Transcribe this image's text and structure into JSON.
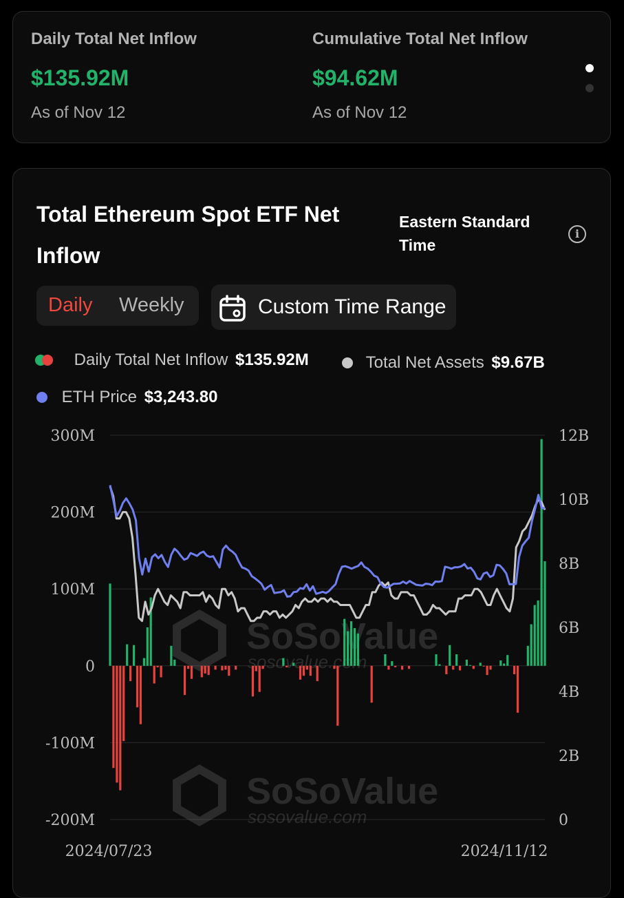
{
  "stats": {
    "daily": {
      "label": "Daily Total Net Inflow",
      "value": "$135.92M",
      "date": "As of Nov 12"
    },
    "cumulative": {
      "label": "Cumulative Total Net Inflow",
      "value": "$94.62M",
      "date": "As of Nov 12"
    }
  },
  "chart_card": {
    "title": "Total Ethereum Spot ETF Net Inflow",
    "timezone": "Eastern Standard Time",
    "tabs": {
      "daily": "Daily",
      "weekly": "Weekly"
    },
    "range_button": "Custom Time Range"
  },
  "legend": {
    "inflow_label": "Daily Total Net Inflow",
    "inflow_value": "$135.92M",
    "assets_label": "Total Net Assets",
    "assets_value": "$9.67B",
    "price_label": "ETH Price",
    "price_value": "$3,243.80"
  },
  "watermark": {
    "brand": "SoSoValue",
    "url": "sosovalue.com"
  },
  "colors": {
    "positive": "#22b36b",
    "negative": "#e8423f",
    "price": "#6f7ff0",
    "assets": "#c8c8c8",
    "grid": "#2a2a2a"
  },
  "chart_data": {
    "type": "bar",
    "left_axis": {
      "ticks": [
        "300M",
        "200M",
        "100M",
        "0",
        "-100M",
        "-200M"
      ],
      "range": [
        -200,
        300
      ],
      "unit": "M"
    },
    "right_axis": {
      "ticks": [
        "12B",
        "10B",
        "8B",
        "6B",
        "4B",
        "2B",
        "0"
      ],
      "range": [
        0,
        12
      ],
      "unit": "B"
    },
    "x_labels": [
      "2024/07/23",
      "2024/11/12"
    ],
    "daily_net_inflow_musd": [
      107,
      -133,
      -152,
      -162,
      -98,
      28,
      -20,
      27,
      -54,
      -76,
      10,
      50,
      89,
      -23,
      -2,
      -15,
      0,
      0,
      26,
      8,
      0,
      0,
      -38,
      -4,
      -17,
      0,
      0,
      -15,
      -10,
      -12,
      0,
      -5,
      0,
      -6,
      -5,
      -13,
      0,
      -5,
      0,
      0,
      0,
      0,
      -40,
      -7,
      -34,
      -4,
      0,
      0,
      0,
      0,
      0,
      10,
      -2,
      0,
      4,
      0,
      -18,
      -13,
      -5,
      -13,
      0,
      -20,
      0,
      0,
      0,
      0,
      -4,
      -78,
      0,
      61,
      45,
      58,
      49,
      42,
      0,
      0,
      0,
      -48,
      0,
      0,
      0,
      15,
      -5,
      6,
      -2,
      0,
      -5,
      0,
      -4,
      0,
      0,
      0,
      0,
      0,
      0,
      0,
      15,
      2,
      0,
      -11,
      27,
      -5,
      15,
      -6,
      0,
      8,
      1,
      -4,
      0,
      4,
      -1,
      -12,
      -5,
      0,
      0,
      7,
      3,
      14,
      0,
      -11,
      -61,
      0,
      0,
      26,
      54,
      79,
      85,
      295,
      136
    ],
    "total_net_assets_busd": [
      10.4,
      10.1,
      9.4,
      9.4,
      9.6,
      9.6,
      9.4,
      8.8,
      7.6,
      6.3,
      6.2,
      6.8,
      6.4,
      6.6,
      7.0,
      7.2,
      7.0,
      6.8,
      6.7,
      7.0,
      6.9,
      6.8,
      6.6,
      7.1,
      7.1,
      7.0,
      7.0,
      7.0,
      7.0,
      7.1,
      6.8,
      7.0,
      6.9,
      6.7,
      6.6,
      7.2,
      7.2,
      7.0,
      7.1,
      6.9,
      6.5,
      6.6,
      6.6,
      6.4,
      6.2,
      6.2,
      6.3,
      6.3,
      6.5,
      6.5,
      6.4,
      6.5,
      6.5,
      6.3,
      6.4,
      6.3,
      6.4,
      6.5,
      6.7,
      6.6,
      6.8,
      6.9,
      6.8,
      6.8,
      6.9,
      6.8,
      6.9,
      6.9,
      6.8,
      6.9,
      6.8,
      6.8,
      6.7,
      6.7,
      6.7,
      6.7,
      6.5,
      6.3,
      6.3,
      6.5,
      6.7,
      6.7,
      7.1,
      7.1,
      7.3,
      7.4,
      7.3,
      7.4,
      7.0,
      6.9,
      6.9,
      7.1,
      7.1,
      7.1,
      7.0,
      7.0,
      6.8,
      6.6,
      6.4,
      6.4,
      6.5,
      6.7,
      6.6,
      6.6,
      6.5,
      6.4,
      6.5,
      6.5,
      6.5,
      6.9,
      6.9,
      7.0,
      7.0,
      7.0,
      7.2,
      7.2,
      7.1,
      6.9,
      6.7,
      6.7,
      7.0,
      7.2,
      7.0,
      6.8,
      6.6,
      6.5,
      6.9,
      8.5,
      8.7,
      9.0,
      9.1,
      9.3,
      9.5,
      9.8,
      10.0,
      9.9,
      9.67
    ],
    "eth_price_usd": [
      3482,
      3328,
      3158,
      3214,
      3298,
      3344,
      3291,
      3228,
      3116,
      2722,
      2551,
      2717,
      2582,
      2731,
      2761,
      2721,
      2755,
      2682,
      2630,
      2756,
      2820,
      2790,
      2745,
      2706,
      2720,
      2775,
      2761,
      2745,
      2775,
      2790,
      2750,
      2734,
      2742,
      2684,
      2625,
      2812,
      2852,
      2812,
      2789,
      2756,
      2683,
      2624,
      2613,
      2592,
      2533,
      2511,
      2485,
      2455,
      2393,
      2421,
      2442,
      2358,
      2364,
      2368,
      2387,
      2321,
      2325,
      2368,
      2373,
      2410,
      2402,
      2451,
      2384,
      2429,
      2350,
      2360,
      2371,
      2358,
      2380,
      2416,
      2451,
      2557,
      2632,
      2638,
      2627,
      2612,
      2628,
      2640,
      2677,
      2630,
      2613,
      2580,
      2539,
      2524,
      2461,
      2421,
      2415,
      2433,
      2455,
      2456,
      2458,
      2478,
      2458,
      2484,
      2464,
      2445,
      2441,
      2436,
      2456,
      2452,
      2441,
      2478,
      2476,
      2483,
      2632,
      2624,
      2612,
      2627,
      2627,
      2636,
      2660,
      2614,
      2622,
      2580,
      2512,
      2500,
      2562,
      2574,
      2526,
      2544,
      2652,
      2646,
      2610,
      2563,
      2449,
      2451,
      2453,
      2733,
      2852,
      2896,
      2935,
      3110,
      3242,
      3381,
      3244,
      3243.8
    ]
  }
}
